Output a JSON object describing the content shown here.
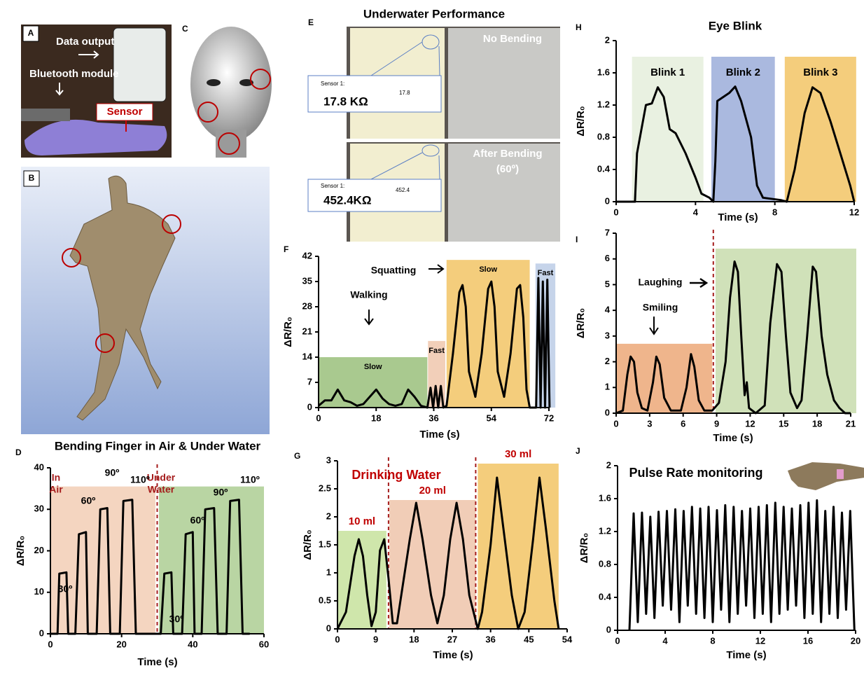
{
  "photos": {
    "A": {
      "label": "A",
      "data_output": "Data output",
      "bluetooth": "Bluetooth module",
      "sensor": "Sensor"
    },
    "B": {
      "label": "B"
    },
    "C": {
      "label": "C"
    },
    "E": {
      "label": "E",
      "title": "Underwater Performance",
      "no_bending": "No Bending",
      "after_bending": "After Bending",
      "angle": "(60º)",
      "sensor_label": "Sensor 1:",
      "reading_1": "17.8 KΩ",
      "screen_1": "17.8",
      "reading_2": "452.4KΩ",
      "screen_2": "452.4"
    }
  },
  "chart_data": [
    {
      "type": "line",
      "panel": "D",
      "title": "Bending Finger in Air & Under Water",
      "xlabel": "Time (s)",
      "ylabel": "ΔR/R₀",
      "color": "#000000",
      "xlim": [
        0,
        60
      ],
      "ylim": [
        0,
        40
      ],
      "xticks": [
        0,
        20,
        40,
        60
      ],
      "yticks": [
        0,
        10,
        20,
        30,
        40
      ],
      "x": [
        0,
        2,
        2.5,
        4.5,
        5,
        7,
        8,
        10,
        10.5,
        13,
        14,
        16,
        16.8,
        19.5,
        20.5,
        23,
        24,
        26,
        31,
        32,
        34,
        34.5,
        37,
        38,
        40,
        40.5,
        42.5,
        43.5,
        46,
        47,
        49.5,
        50.5,
        53,
        54,
        56
      ],
      "values": [
        0,
        0,
        14.5,
        14.8,
        0,
        0,
        24,
        24.5,
        0,
        0,
        30,
        30.3,
        0,
        0,
        32,
        32.3,
        0,
        0,
        0,
        14.5,
        14.8,
        0,
        0,
        24,
        24.5,
        0,
        0,
        30,
        30.3,
        0,
        0,
        32,
        32.3,
        0,
        0
      ],
      "regions": [
        {
          "start": 0,
          "end": 29.5,
          "top": 35.5,
          "color": "#f4d5c0"
        },
        {
          "start": 30.5,
          "end": 60,
          "top": 35.5,
          "color": "#b9d5a3"
        }
      ],
      "dividers": [
        30
      ],
      "annotations": [
        "In",
        "Air",
        "Under",
        "Water",
        "30º",
        "60º",
        "90º",
        "110º",
        "30º",
        "60º",
        "90º",
        "110º"
      ]
    },
    {
      "type": "line",
      "panel": "F",
      "xlabel": "Time (s)",
      "ylabel": "ΔR/R₀",
      "color": "#000000",
      "xlim": [
        0,
        72
      ],
      "ylim": [
        0,
        42
      ],
      "xticks": [
        0,
        18,
        36,
        54,
        72
      ],
      "yticks": [
        0,
        7,
        14,
        21,
        28,
        35,
        42
      ],
      "x": [
        0,
        2,
        4,
        6,
        8,
        10,
        12,
        14,
        16,
        18,
        20,
        22,
        24,
        26,
        28,
        30,
        32,
        34,
        35,
        35.8,
        36.6,
        37.4,
        38.2,
        39,
        40,
        42,
        44,
        45,
        46,
        47,
        49,
        51,
        53,
        54,
        55,
        56,
        58,
        60,
        62,
        63,
        64,
        65,
        66,
        68,
        68.7,
        69.4,
        70.1,
        70.8,
        71.5,
        72.2
      ],
      "values": [
        0.5,
        2,
        2,
        5,
        2,
        1.5,
        0.5,
        1,
        3,
        5,
        2.5,
        1,
        0.5,
        1,
        5,
        3,
        0.5,
        0,
        5.5,
        0,
        6,
        0,
        6,
        0,
        0.5,
        15,
        32,
        34,
        28,
        10,
        3,
        15,
        33,
        35,
        28,
        10,
        3,
        15,
        33,
        34,
        25,
        5,
        0,
        0,
        36,
        0,
        35,
        0,
        35.5,
        0
      ],
      "regions": [
        {
          "start": 0,
          "end": 34,
          "top": 14,
          "color": "#a9c98f",
          "label": "Slow"
        },
        {
          "start": 34.2,
          "end": 39.6,
          "top": 18.5,
          "color": "#f2cfb9",
          "label": "Fast"
        },
        {
          "start": 40,
          "end": 66,
          "top": 41,
          "color": "#f4cd7c",
          "label": "Slow"
        },
        {
          "start": 67.8,
          "end": 74,
          "top": 40,
          "color": "#c6d4ea",
          "label": "Fast"
        }
      ],
      "annotations": [
        "Walking",
        "Squatting"
      ]
    },
    {
      "type": "line",
      "panel": "G",
      "xlabel": "Time (s)",
      "ylabel": "ΔR/R₀",
      "color": "#000000",
      "xlim": [
        0,
        54
      ],
      "ylim": [
        0,
        3
      ],
      "xticks": [
        0,
        9,
        18,
        27,
        36,
        45,
        54
      ],
      "yticks": [
        0,
        0.5,
        1,
        1.5,
        2,
        2.5,
        3
      ],
      "x": [
        0,
        2,
        4,
        5,
        6,
        7,
        8,
        9,
        10,
        11,
        12,
        13,
        14,
        15,
        17,
        18.5,
        20,
        22,
        23.5,
        25,
        26.5,
        28,
        29.5,
        31,
        33,
        34,
        36,
        37.5,
        39,
        41,
        42.5,
        44,
        46,
        47.5,
        49,
        51,
        52
      ],
      "values": [
        0,
        0.3,
        1.3,
        1.6,
        1.3,
        0.6,
        0.05,
        0.3,
        1.4,
        1.6,
        0.9,
        0.1,
        0.1,
        0.6,
        1.6,
        2.25,
        1.6,
        0.6,
        0.1,
        0.6,
        1.6,
        2.25,
        1.6,
        0.6,
        0,
        0.3,
        1.5,
        2.7,
        1.8,
        0.6,
        0,
        0.3,
        1.6,
        2.7,
        1.8,
        0.5,
        0
      ],
      "regions": [
        {
          "start": 0,
          "end": 11.5,
          "top": 1.75,
          "color": "#cfe6ab",
          "label": "10 ml"
        },
        {
          "start": 12.2,
          "end": 32.5,
          "top": 2.3,
          "color": "#f1cdb7",
          "label": "20 ml"
        },
        {
          "start": 33,
          "end": 52,
          "top": 2.95,
          "color": "#f4cd7c",
          "label": "30 ml"
        }
      ],
      "dividers": [
        12,
        32.5
      ],
      "annotations": [
        "Drinking Water"
      ]
    },
    {
      "type": "line",
      "panel": "H",
      "title": "Eye Blink",
      "xlabel": "Time (s)",
      "ylabel": "ΔR/R₀",
      "color": "#000000",
      "xlim": [
        0,
        12
      ],
      "ylim": [
        0,
        2
      ],
      "xticks": [
        0,
        4,
        8,
        12
      ],
      "yticks": [
        0,
        0.4,
        0.8,
        1.2,
        1.6,
        2
      ],
      "x": [
        0,
        0.95,
        1.05,
        1.5,
        1.8,
        2.1,
        2.4,
        2.7,
        3.0,
        3.5,
        4.0,
        4.3,
        4.7,
        4.9,
        5.0,
        5.1,
        5.4,
        5.7,
        6.0,
        6.3,
        6.8,
        7.1,
        7.4,
        8.3,
        8.6,
        9.0,
        9.5,
        9.9,
        10.3,
        10.8,
        11.3,
        11.8,
        12
      ],
      "values": [
        0,
        0,
        0.6,
        1.2,
        1.22,
        1.42,
        1.3,
        0.9,
        0.85,
        0.6,
        0.3,
        0.1,
        0.05,
        0,
        0.5,
        1.25,
        1.3,
        1.35,
        1.43,
        1.25,
        0.8,
        0.2,
        0.05,
        0.02,
        0,
        0.4,
        1.1,
        1.42,
        1.35,
        1.0,
        0.6,
        0.2,
        0
      ],
      "regions": [
        {
          "start": 0.8,
          "end": 4.4,
          "top": 1.8,
          "color": "#e9f1e1",
          "label": "Blink 1"
        },
        {
          "start": 4.8,
          "end": 8.0,
          "top": 1.8,
          "color": "#aab9df",
          "label": "Blink 2"
        },
        {
          "start": 8.5,
          "end": 12.1,
          "top": 1.8,
          "color": "#f4cd7c",
          "label": "Blink 3"
        }
      ]
    },
    {
      "type": "line",
      "panel": "I",
      "xlabel": "Time (s)",
      "ylabel": "ΔR/R₀",
      "color": "#000000",
      "xlim": [
        0,
        21
      ],
      "ylim": [
        0,
        7
      ],
      "xticks": [
        0,
        3,
        6,
        9,
        12,
        15,
        18,
        21
      ],
      "yticks": [
        0,
        1,
        2,
        3,
        4,
        5,
        6,
        7
      ],
      "x": [
        0,
        0.6,
        1.0,
        1.3,
        1.6,
        1.9,
        2.3,
        2.8,
        3.3,
        3.6,
        3.9,
        4.3,
        4.9,
        5.8,
        6.3,
        6.7,
        7.0,
        7.4,
        7.9,
        8.6,
        9.2,
        9.8,
        10.2,
        10.6,
        10.9,
        11.2,
        11.5,
        11.7,
        11.9,
        12.5,
        13.3,
        13.8,
        14.4,
        14.8,
        15.2,
        15.6,
        16.2,
        16.6,
        17.1,
        17.6,
        17.9,
        18.4,
        18.9,
        19.5,
        20.0,
        20.5,
        21
      ],
      "values": [
        0,
        0.1,
        1.5,
        2.2,
        2.0,
        0.8,
        0.2,
        0.1,
        1.2,
        2.2,
        1.9,
        0.6,
        0.1,
        0.1,
        1.0,
        2.3,
        1.8,
        0.5,
        0.1,
        0.1,
        0.4,
        2.0,
        4.5,
        5.9,
        5.5,
        3.0,
        0.7,
        1.2,
        0.2,
        0,
        0.3,
        3.5,
        5.8,
        5.5,
        3.0,
        0.8,
        0.2,
        0.5,
        3.0,
        5.7,
        5.5,
        3.0,
        1.5,
        0.5,
        0.2,
        0,
        0
      ],
      "regions": [
        {
          "start": 0,
          "end": 8.6,
          "top": 2.7,
          "color": "#efb58c"
        },
        {
          "start": 8.9,
          "end": 21.5,
          "top": 6.4,
          "color": "#d0e1b9"
        }
      ],
      "dividers": [
        8.7
      ],
      "annotations": [
        "Laughing",
        "Smiling"
      ]
    },
    {
      "type": "line",
      "panel": "J",
      "xlabel": "Time (s)",
      "ylabel": "ΔR/R₀",
      "color": "#000000",
      "xlim": [
        0,
        20
      ],
      "ylim": [
        0,
        2
      ],
      "xticks": [
        0,
        4,
        8,
        12,
        16,
        20
      ],
      "yticks": [
        0,
        0.4,
        0.8,
        1.2,
        1.6,
        2
      ],
      "x": [
        1.0,
        1.35,
        1.7,
        2.05,
        2.4,
        2.75,
        3.1,
        3.45,
        3.8,
        4.15,
        4.5,
        4.85,
        5.2,
        5.55,
        5.9,
        6.25,
        6.6,
        6.95,
        7.3,
        7.65,
        8.0,
        8.35,
        8.7,
        9.05,
        9.4,
        9.75,
        10.1,
        10.45,
        10.8,
        11.15,
        11.5,
        11.85,
        12.2,
        12.55,
        12.9,
        13.25,
        13.6,
        13.95,
        14.3,
        14.65,
        15.0,
        15.35,
        15.7,
        16.05,
        16.4,
        16.75,
        17.1,
        17.45,
        17.8,
        18.15,
        18.5,
        18.85,
        19.2,
        19.55,
        19.9
      ],
      "values": [
        0,
        1.42,
        0.1,
        1.43,
        0.2,
        1.38,
        0.15,
        1.44,
        0.3,
        1.45,
        0.25,
        1.47,
        0.1,
        1.45,
        0.3,
        1.5,
        0.2,
        1.48,
        0.15,
        1.5,
        0.1,
        1.46,
        0.25,
        1.52,
        0.1,
        1.5,
        0.2,
        1.45,
        0.3,
        1.48,
        0.15,
        1.5,
        0.2,
        1.52,
        0.1,
        1.55,
        0.2,
        1.5,
        0.25,
        1.48,
        0.3,
        1.52,
        0.15,
        1.55,
        0.2,
        1.58,
        0.1,
        1.45,
        0.2,
        1.5,
        0.15,
        1.43,
        0.25,
        1.45,
        0
      ],
      "annotations": [
        "Pulse Rate monitoring"
      ]
    }
  ]
}
